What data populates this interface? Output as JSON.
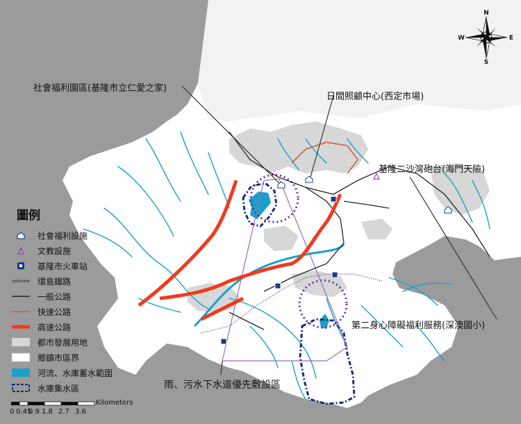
{
  "labels": {
    "welfare_park": "社會福利園區(基隆市立仁愛之家)",
    "day_care": "日間照顧中心(西定市場)",
    "battery": "基隆二沙灣砲台(海門天險)",
    "disability": "第二身心障礙福利服務(深澳國小)",
    "sewer": "雨、污水下水道優先敷設區"
  },
  "legend": {
    "title": "圖例",
    "items": [
      {
        "label": "社會福利設施",
        "icon": "welfare-icon"
      },
      {
        "label": "文教設施",
        "icon": "culture-icon"
      },
      {
        "label": "基隆市火車站",
        "icon": "train-station-icon"
      },
      {
        "label": "環島鐵路",
        "icon": "railway-line"
      },
      {
        "label": "一般公路",
        "icon": "general-road-line"
      },
      {
        "label": "快速公路",
        "icon": "expressway-line"
      },
      {
        "label": "高速公路",
        "icon": "freeway-line"
      },
      {
        "label": "都市發展用地",
        "icon": "urban-land-fill"
      },
      {
        "label": "鄉鎮市區界",
        "icon": "district-boundary-fill"
      },
      {
        "label": "河流、水庫蓄水範圍",
        "icon": "water-fill"
      },
      {
        "label": "水庫集水區",
        "icon": "catchment-outline"
      }
    ]
  },
  "scale": {
    "unit": "Kilometers",
    "ticks": [
      "0",
      "0.45",
      "0.9",
      "1.8",
      "2.7",
      "3.6"
    ]
  },
  "compass": {
    "n": "N",
    "s": "S",
    "e": "E",
    "w": "W"
  },
  "colors": {
    "sea": "#9b9b9b",
    "land": "#ffffff",
    "urban": "#d9d9d9",
    "river": "#1aa0c8",
    "freeway": "#f03a1e",
    "expressway": "#c8604a",
    "road": "#222222",
    "catchment": "#1a2a7a",
    "circle": "#6a2a9a"
  }
}
